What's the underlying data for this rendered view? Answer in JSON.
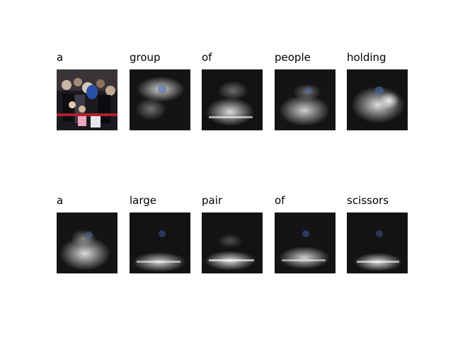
{
  "figure": {
    "rows": [
      {
        "words": [
          "a",
          "group",
          "of",
          "people",
          "holding"
        ]
      },
      {
        "words": [
          "a",
          "large",
          "pair",
          "of",
          "scissors"
        ]
      }
    ]
  }
}
